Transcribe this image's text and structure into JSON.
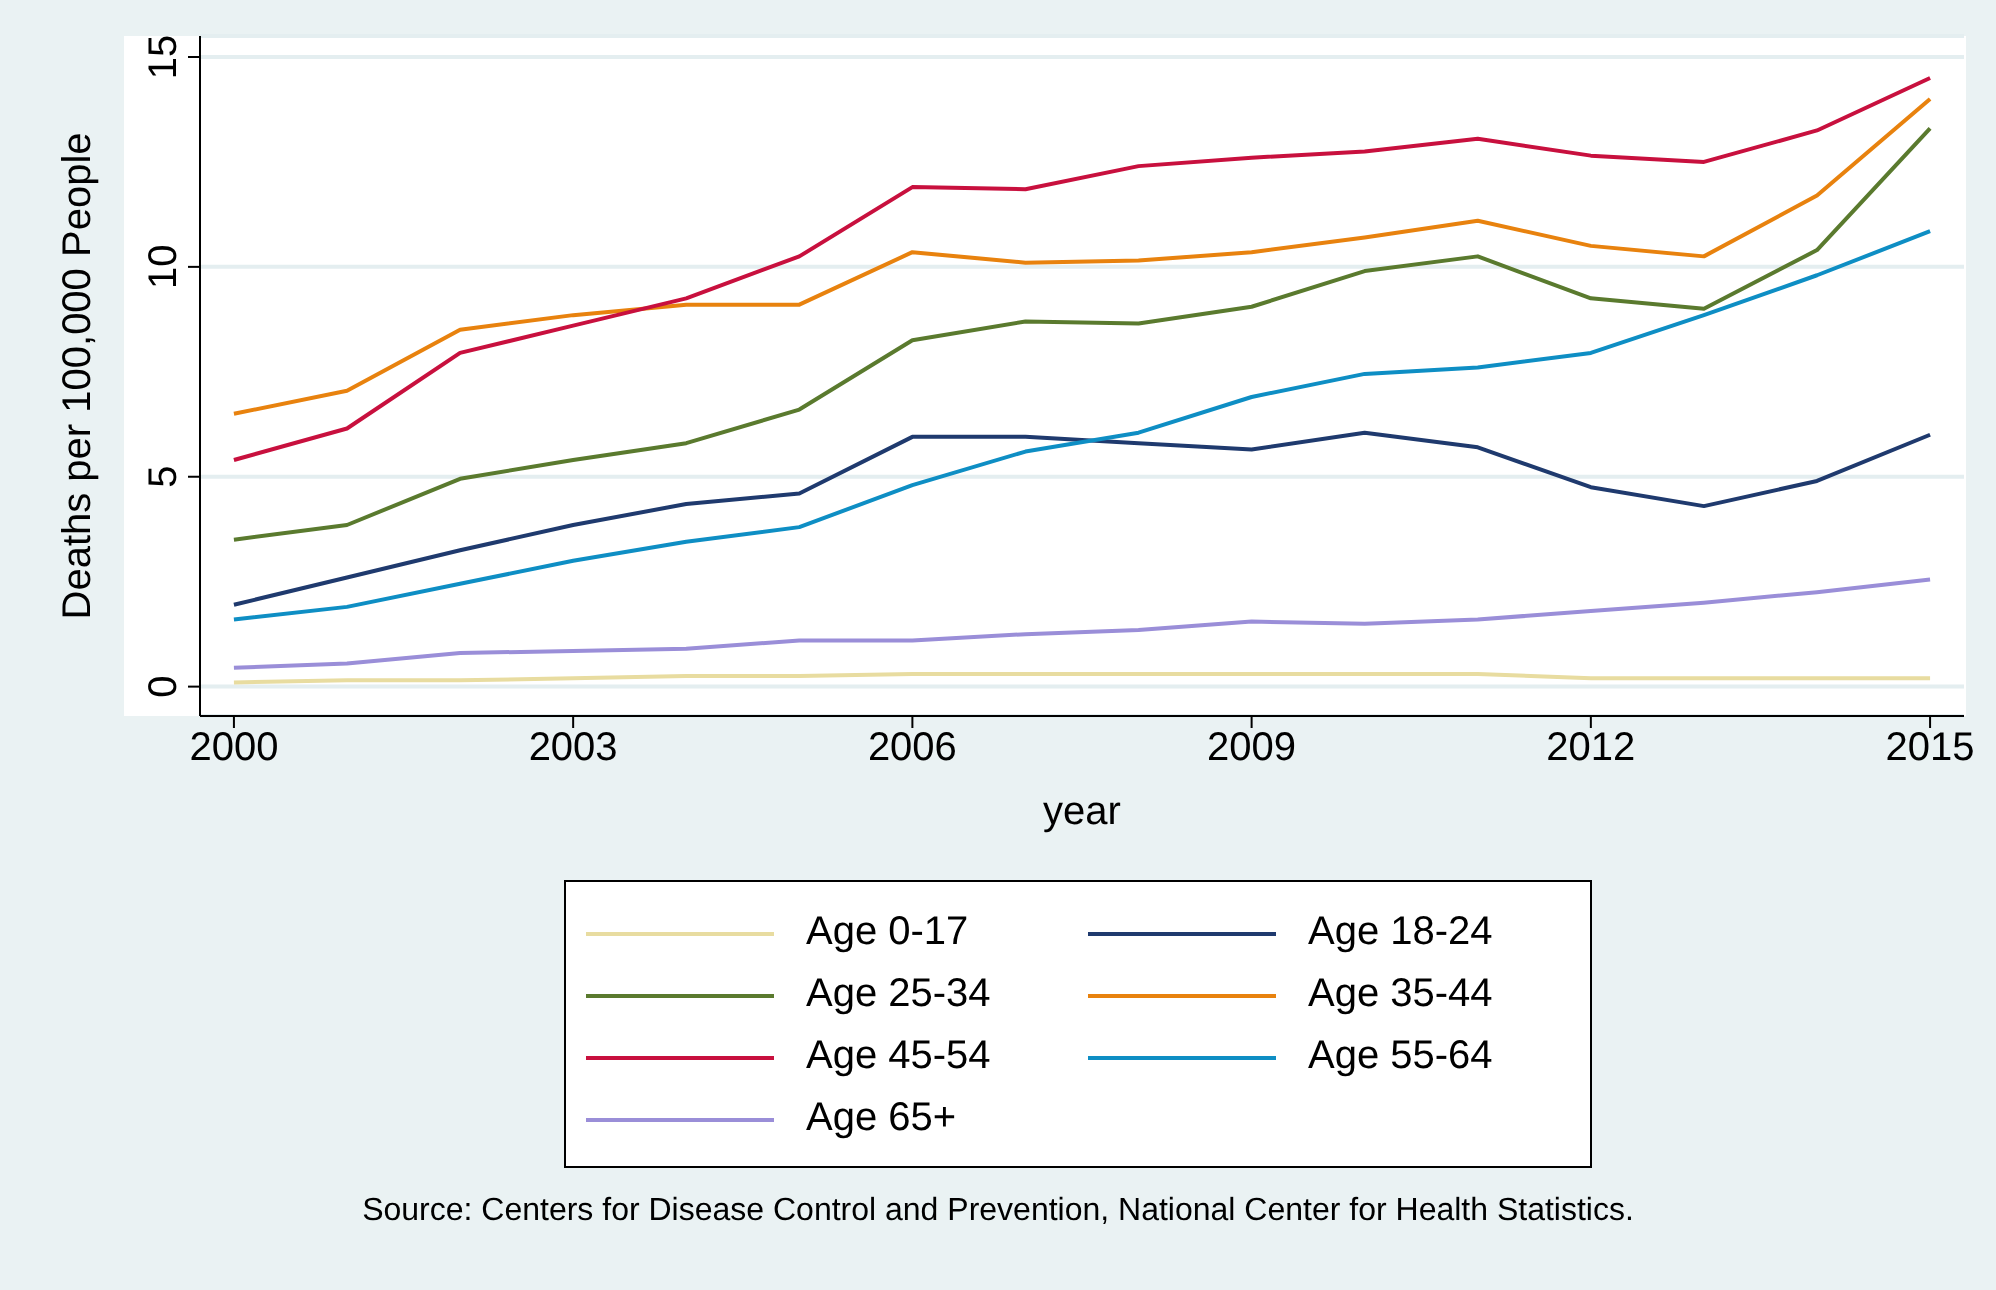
{
  "chart_data": {
    "type": "line",
    "xlabel": "year",
    "ylabel": "Deaths per 100,000 People",
    "x": [
      2000,
      2001,
      2002,
      2003,
      2004,
      2005,
      2006,
      2007,
      2008,
      2009,
      2010,
      2011,
      2012,
      2013,
      2014,
      2015
    ],
    "series": [
      {
        "name": "Age 0-17",
        "color": "#e8dca0",
        "values": [
          0.1,
          0.15,
          0.15,
          0.2,
          0.25,
          0.25,
          0.3,
          0.3,
          0.3,
          0.3,
          0.3,
          0.3,
          0.2,
          0.2,
          0.2,
          0.2
        ]
      },
      {
        "name": "Age 18-24",
        "color": "#1f3a6e",
        "values": [
          1.95,
          2.6,
          3.25,
          3.85,
          4.35,
          4.6,
          5.95,
          5.95,
          5.8,
          5.65,
          6.05,
          5.7,
          4.75,
          4.3,
          4.9,
          6.0
        ]
      },
      {
        "name": "Age 25-34",
        "color": "#5a7a2e",
        "values": [
          3.5,
          3.85,
          4.95,
          5.4,
          5.8,
          6.6,
          8.25,
          8.7,
          8.65,
          9.05,
          9.9,
          10.25,
          9.25,
          9.0,
          10.4,
          13.3
        ]
      },
      {
        "name": "Age 35-44",
        "color": "#e8820e",
        "values": [
          6.5,
          7.05,
          8.5,
          8.85,
          9.1,
          9.1,
          10.35,
          10.1,
          10.15,
          10.35,
          10.7,
          11.1,
          10.5,
          10.25,
          11.7,
          14.0
        ]
      },
      {
        "name": "Age 45-54",
        "color": "#c8103e",
        "values": [
          5.4,
          6.15,
          7.95,
          8.6,
          9.25,
          10.25,
          11.9,
          11.85,
          12.4,
          12.6,
          12.75,
          13.05,
          12.65,
          12.5,
          13.25,
          14.5
        ]
      },
      {
        "name": "Age 55-64",
        "color": "#0e8ec4",
        "values": [
          1.6,
          1.9,
          2.45,
          3.0,
          3.45,
          3.8,
          4.8,
          5.6,
          6.05,
          6.9,
          7.45,
          7.6,
          7.95,
          8.85,
          9.8,
          10.85
        ]
      },
      {
        "name": "Age 65+",
        "color": "#9a8ed8",
        "values": [
          0.45,
          0.55,
          0.8,
          0.85,
          0.9,
          1.1,
          1.1,
          1.25,
          1.35,
          1.55,
          1.5,
          1.6,
          1.8,
          2.0,
          2.25,
          2.55
        ]
      }
    ],
    "xlim": [
      1999.7,
      2015.3
    ],
    "xticks": [
      2000,
      2003,
      2006,
      2009,
      2012,
      2015
    ],
    "ylim": [
      -0.7,
      15.5
    ],
    "yticks": [
      0,
      5,
      10,
      15
    ],
    "grid": "y",
    "legend": "bottom",
    "marker": "none",
    "line_style": "solid",
    "annotations": [
      "Source: Centers for Disease Control and Prevention, National Center for Health Statistics."
    ]
  }
}
